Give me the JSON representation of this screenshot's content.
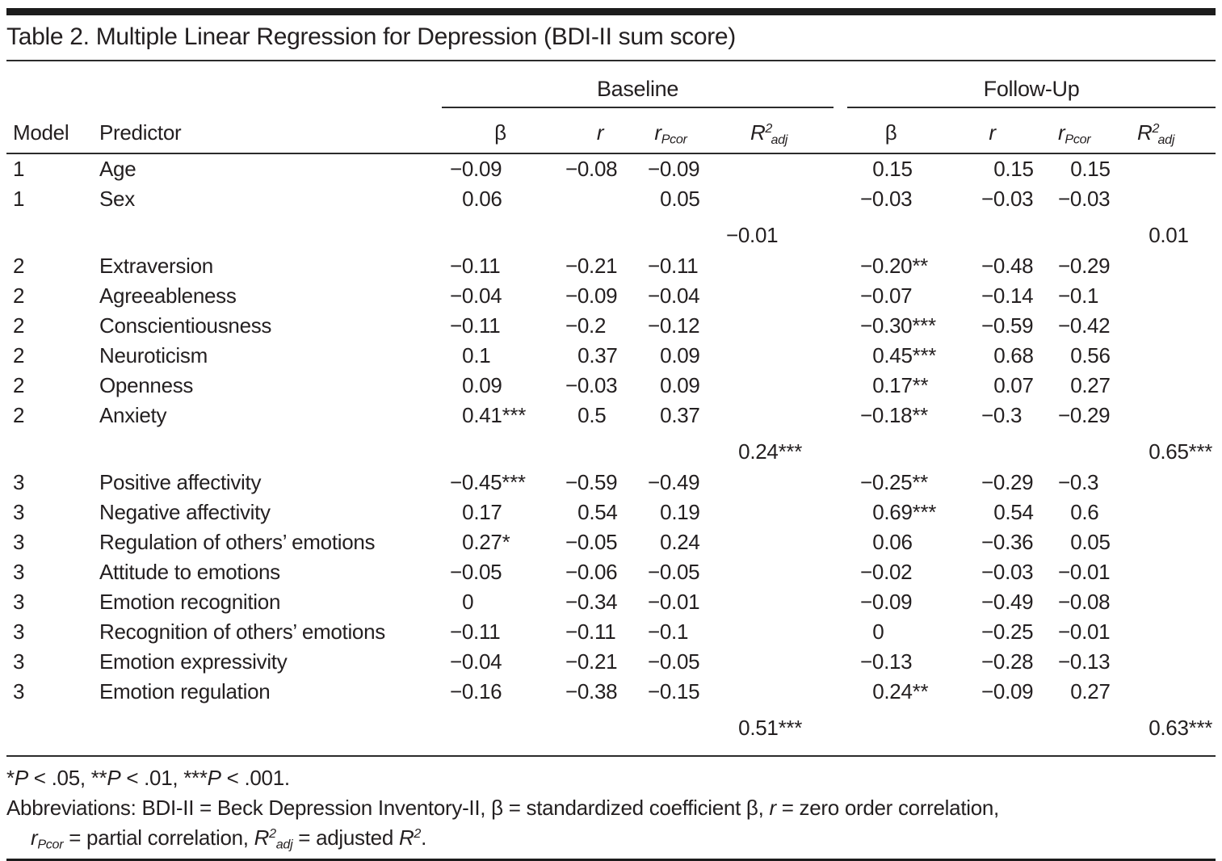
{
  "header": {
    "title": "Table 2. Multiple Linear Regression for Depression (BDI-II sum score)"
  },
  "table": {
    "groups": [
      "Baseline",
      "Follow-Up"
    ],
    "model_label": "Model",
    "predictor_label": "Predictor",
    "col_headers": {
      "beta": "β",
      "r": "r",
      "rpcor_main": "r",
      "rpcor_sub": "Pcor",
      "r2_main": "R",
      "r2_sup": "2",
      "r2_sub": "adj"
    },
    "rows": [
      {
        "model": "1",
        "predictor": "Age",
        "b": [
          "−0.09",
          "−0.08",
          "−0.09",
          ""
        ],
        "f": [
          "0.15",
          "0.15",
          "0.15",
          ""
        ]
      },
      {
        "model": "1",
        "predictor": "Sex",
        "b": [
          "0.06",
          "",
          "0.05",
          ""
        ],
        "f": [
          "−0.03",
          "−0.03",
          "−0.03",
          ""
        ]
      },
      {
        "type": "r2",
        "model": "",
        "predictor": "",
        "b": [
          "",
          "",
          "",
          "−0.01"
        ],
        "f": [
          "",
          "",
          "",
          "0.01"
        ]
      },
      {
        "model": "2",
        "predictor": "Extraversion",
        "b": [
          "−0.11",
          "−0.21",
          "−0.11",
          ""
        ],
        "f": [
          "−0.20**",
          "−0.48",
          "−0.29",
          ""
        ]
      },
      {
        "model": "2",
        "predictor": "Agreeableness",
        "b": [
          "−0.04",
          "−0.09",
          "−0.04",
          ""
        ],
        "f": [
          "−0.07",
          "−0.14",
          "−0.1",
          ""
        ]
      },
      {
        "model": "2",
        "predictor": "Conscientiousness",
        "b": [
          "−0.11",
          "−0.2",
          "−0.12",
          ""
        ],
        "f": [
          "−0.30***",
          "−0.59",
          "−0.42",
          ""
        ]
      },
      {
        "model": "2",
        "predictor": "Neuroticism",
        "b": [
          "0.1",
          "0.37",
          "0.09",
          ""
        ],
        "f": [
          "0.45***",
          "0.68",
          "0.56",
          ""
        ]
      },
      {
        "model": "2",
        "predictor": "Openness",
        "b": [
          "0.09",
          "−0.03",
          "0.09",
          ""
        ],
        "f": [
          "0.17**",
          "0.07",
          "0.27",
          ""
        ]
      },
      {
        "model": "2",
        "predictor": "Anxiety",
        "b": [
          "0.41***",
          "0.5",
          "0.37",
          ""
        ],
        "f": [
          "−0.18**",
          "−0.3",
          "−0.29",
          ""
        ]
      },
      {
        "type": "r2",
        "model": "",
        "predictor": "",
        "b": [
          "",
          "",
          "",
          "0.24***"
        ],
        "f": [
          "",
          "",
          "",
          "0.65***"
        ]
      },
      {
        "model": "3",
        "predictor": "Positive affectivity",
        "b": [
          "−0.45***",
          "−0.59",
          "−0.49",
          ""
        ],
        "f": [
          "−0.25**",
          "−0.29",
          "−0.3",
          ""
        ]
      },
      {
        "model": "3",
        "predictor": "Negative affectivity",
        "b": [
          "0.17",
          "0.54",
          "0.19",
          ""
        ],
        "f": [
          "0.69***",
          "0.54",
          "0.6",
          ""
        ]
      },
      {
        "model": "3",
        "predictor": "Regulation of others’ emotions",
        "b": [
          "0.27*",
          "−0.05",
          "0.24",
          ""
        ],
        "f": [
          "0.06",
          "−0.36",
          "0.05",
          ""
        ]
      },
      {
        "model": "3",
        "predictor": "Attitude to emotions",
        "b": [
          "−0.05",
          "−0.06",
          "−0.05",
          ""
        ],
        "f": [
          "−0.02",
          "−0.03",
          "−0.01",
          ""
        ]
      },
      {
        "model": "3",
        "predictor": "Emotion recognition",
        "b": [
          "0",
          "−0.34",
          "−0.01",
          ""
        ],
        "f": [
          "−0.09",
          "−0.49",
          "−0.08",
          ""
        ]
      },
      {
        "model": "3",
        "predictor": "Recognition of others’ emotions",
        "b": [
          "−0.11",
          "−0.11",
          "−0.1",
          ""
        ],
        "f": [
          "0",
          "−0.25",
          "−0.01",
          ""
        ]
      },
      {
        "model": "3",
        "predictor": "Emotion expressivity",
        "b": [
          "−0.04",
          "−0.21",
          "−0.05",
          ""
        ],
        "f": [
          "−0.13",
          "−0.28",
          "−0.13",
          ""
        ]
      },
      {
        "model": "3",
        "predictor": "Emotion regulation",
        "b": [
          "−0.16",
          "−0.38",
          "−0.15",
          ""
        ],
        "f": [
          "0.24**",
          "−0.09",
          "0.27",
          ""
        ]
      },
      {
        "type": "r2",
        "model": "",
        "predictor": "",
        "b": [
          "",
          "",
          "",
          "0.51***"
        ],
        "f": [
          "",
          "",
          "",
          "0.63***"
        ]
      }
    ]
  },
  "footer": {
    "note1": [
      {
        "t": "*"
      },
      {
        "t": "P",
        "i": true
      },
      {
        "t": " < .05, **"
      },
      {
        "t": "P",
        "i": true
      },
      {
        "t": " < .01, ***"
      },
      {
        "t": "P",
        "i": true
      },
      {
        "t": " < .001."
      }
    ],
    "note2": [
      {
        "t": "Abbreviations: BDI-II = Beck Depression Inventory-II, β = standardized coefficient β, "
      },
      {
        "t": "r",
        "i": true
      },
      {
        "t": " = zero order correlation,"
      }
    ],
    "note3": [
      {
        "t": "r",
        "i": true
      },
      {
        "t": "Pcor",
        "i": true,
        "sub": true
      },
      {
        "t": " = partial correlation, "
      },
      {
        "t": "R",
        "i": true
      },
      {
        "t": "2",
        "i": true,
        "sup": true
      },
      {
        "t": "adj",
        "i": true,
        "sub": true
      },
      {
        "t": " = adjusted "
      },
      {
        "t": "R",
        "i": true
      },
      {
        "t": "2",
        "i": true,
        "sup": true
      },
      {
        "t": "."
      }
    ]
  }
}
